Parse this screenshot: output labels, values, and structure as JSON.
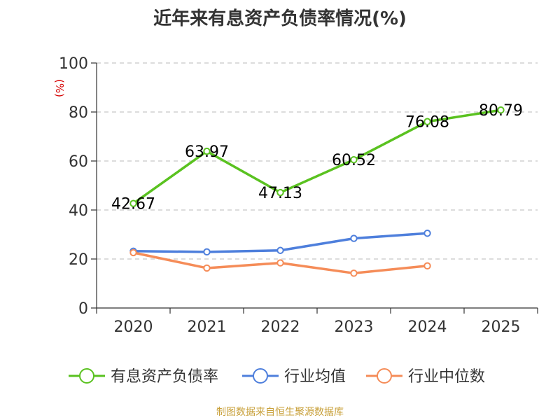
{
  "title": "近年来有息资产负债率情况(%)",
  "source": "制图数据来自恒生聚源数据库",
  "chart_data": {
    "type": "line",
    "title": "近年来有息资产负债率情况(%)",
    "ylabel": "(%)",
    "xlabel": "",
    "categories": [
      "2020",
      "2021",
      "2022",
      "2023",
      "2024",
      "2025"
    ],
    "ylim": [
      0,
      100
    ],
    "yticks": [
      0,
      20,
      40,
      60,
      80,
      100
    ],
    "grid": true,
    "legend_position": "bottom",
    "series": [
      {
        "name": "有息资产负债率",
        "color": "#5ac220",
        "values": [
          42.67,
          63.97,
          47.13,
          60.52,
          76.08,
          80.79
        ],
        "labels": [
          "42.67",
          "63.97",
          "47.13",
          "60.52",
          "76.08",
          "80.79"
        ],
        "show_labels": true
      },
      {
        "name": "行业均值",
        "color": "#4e7fdc",
        "values": [
          23.2,
          22.9,
          23.5,
          28.4,
          30.5,
          null
        ],
        "show_labels": false
      },
      {
        "name": "行业中位数",
        "color": "#f58c58",
        "values": [
          22.6,
          16.3,
          18.4,
          14.2,
          17.2,
          null
        ],
        "show_labels": false
      }
    ]
  }
}
